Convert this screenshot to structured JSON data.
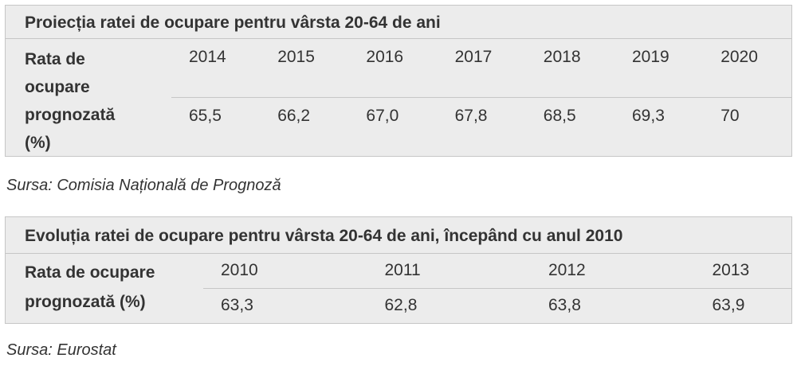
{
  "tables": [
    {
      "title": "Proiecția ratei de ocupare pentru vârsta 20-64 de ani",
      "row_label": "Rata de ocupare prognozată (%)",
      "years": [
        "2014",
        "2015",
        "2016",
        "2017",
        "2018",
        "2019",
        "2020"
      ],
      "values": [
        "65,5",
        "66,2",
        "67,0",
        "67,8",
        "68,5",
        "69,3",
        "70"
      ],
      "source": "Sursa: Comisia Națională de Prognoză"
    },
    {
      "title": "Evoluția ratei de ocupare pentru vârsta 20-64 de ani, începând cu anul 2010",
      "row_label": "Rata de ocupare prognozată (%)",
      "years": [
        "2010",
        "2011",
        "2012",
        "2013"
      ],
      "values": [
        "63,3",
        "62,8",
        "63,8",
        "63,9"
      ],
      "source": "Sursa: Eurostat"
    }
  ]
}
